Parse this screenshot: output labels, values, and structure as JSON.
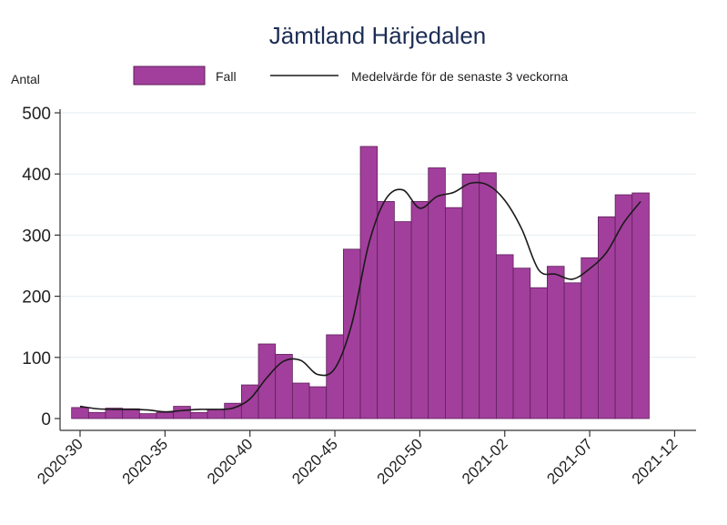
{
  "chart_data": {
    "type": "bar",
    "title": "Jämtland Härjedalen",
    "ylabel": "Antal",
    "xlabel": "",
    "ylim": [
      0,
      500
    ],
    "yticks": [
      0,
      100,
      200,
      300,
      400,
      500
    ],
    "grid": true,
    "legend_position": "top",
    "colors": {
      "bar_fill": "#a23f9c",
      "bar_stroke": "#5e1f5a",
      "line": "#1a1a1a",
      "grid": "#e3ecf0",
      "title": "#1c2c55"
    },
    "x_tick_labels": [
      "2020-30",
      "2020-35",
      "2020-40",
      "2020-45",
      "2020-50",
      "2021-02",
      "2021-07",
      "2021-12"
    ],
    "x_tick_positions": [
      30,
      35,
      40,
      45,
      50,
      55,
      60,
      65
    ],
    "weeks": [
      30,
      31,
      32,
      33,
      34,
      35,
      36,
      37,
      38,
      39,
      40,
      41,
      42,
      43,
      44,
      45,
      46,
      47,
      48,
      49,
      50,
      51,
      52,
      53,
      54,
      55,
      56,
      57,
      58,
      59,
      60,
      61,
      62,
      63
    ],
    "series": [
      {
        "name": "Fall",
        "type": "bar",
        "values": [
          18,
          10,
          17,
          16,
          8,
          10,
          20,
          10,
          15,
          25,
          55,
          122,
          105,
          58,
          52,
          137,
          277,
          445,
          355,
          322,
          355,
          410,
          345,
          400,
          402,
          268,
          246,
          214,
          249,
          222,
          263,
          330,
          366,
          369
        ]
      },
      {
        "name": "Medelvärde för de senaste 3 veckorna",
        "type": "line",
        "values": [
          20,
          16,
          15,
          15,
          14,
          11,
          13,
          15,
          15,
          17,
          32,
          67,
          94,
          95,
          72,
          82,
          155,
          286,
          359,
          374,
          344,
          363,
          370,
          385,
          382,
          357,
          310,
          243,
          236,
          228,
          245,
          272,
          320,
          355
        ]
      }
    ]
  }
}
